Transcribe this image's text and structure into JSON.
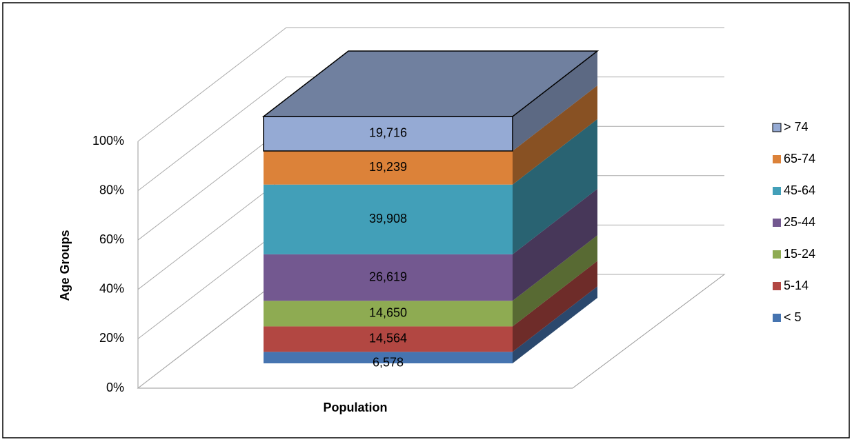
{
  "chart_data": {
    "type": "bar",
    "stacking": "percent",
    "three_d": true,
    "y_label": "Age Groups",
    "categories": [
      "Population"
    ],
    "series": [
      {
        "name": "< 5",
        "color": "#4674b0",
        "values": [
          6578
        ],
        "value_labels": [
          "6,578"
        ]
      },
      {
        "name": "5-14",
        "color": "#b24742",
        "values": [
          14564
        ],
        "value_labels": [
          "14,564"
        ]
      },
      {
        "name": "15-24",
        "color": "#8eab52",
        "values": [
          14650
        ],
        "value_labels": [
          "14,650"
        ]
      },
      {
        "name": "25-44",
        "color": "#735890",
        "values": [
          26619
        ],
        "value_labels": [
          "26,619"
        ]
      },
      {
        "name": "45-64",
        "color": "#429fb8",
        "values": [
          39908
        ],
        "value_labels": [
          "39,908"
        ]
      },
      {
        "name": "65-74",
        "color": "#dc8239",
        "values": [
          19239
        ],
        "value_labels": [
          "19,239"
        ]
      },
      {
        "name": "> 74",
        "color": "#95aad4",
        "values": [
          19716
        ],
        "value_labels": [
          "19,716"
        ]
      }
    ],
    "ylim": [
      0,
      100
    ],
    "yticks": [
      {
        "value": 0,
        "label": "0%"
      },
      {
        "value": 20,
        "label": "20%"
      },
      {
        "value": 40,
        "label": "40%"
      },
      {
        "value": 60,
        "label": "60%"
      },
      {
        "value": 80,
        "label": "80%"
      },
      {
        "value": 100,
        "label": "100%"
      }
    ],
    "grid": true,
    "legend": "right"
  }
}
